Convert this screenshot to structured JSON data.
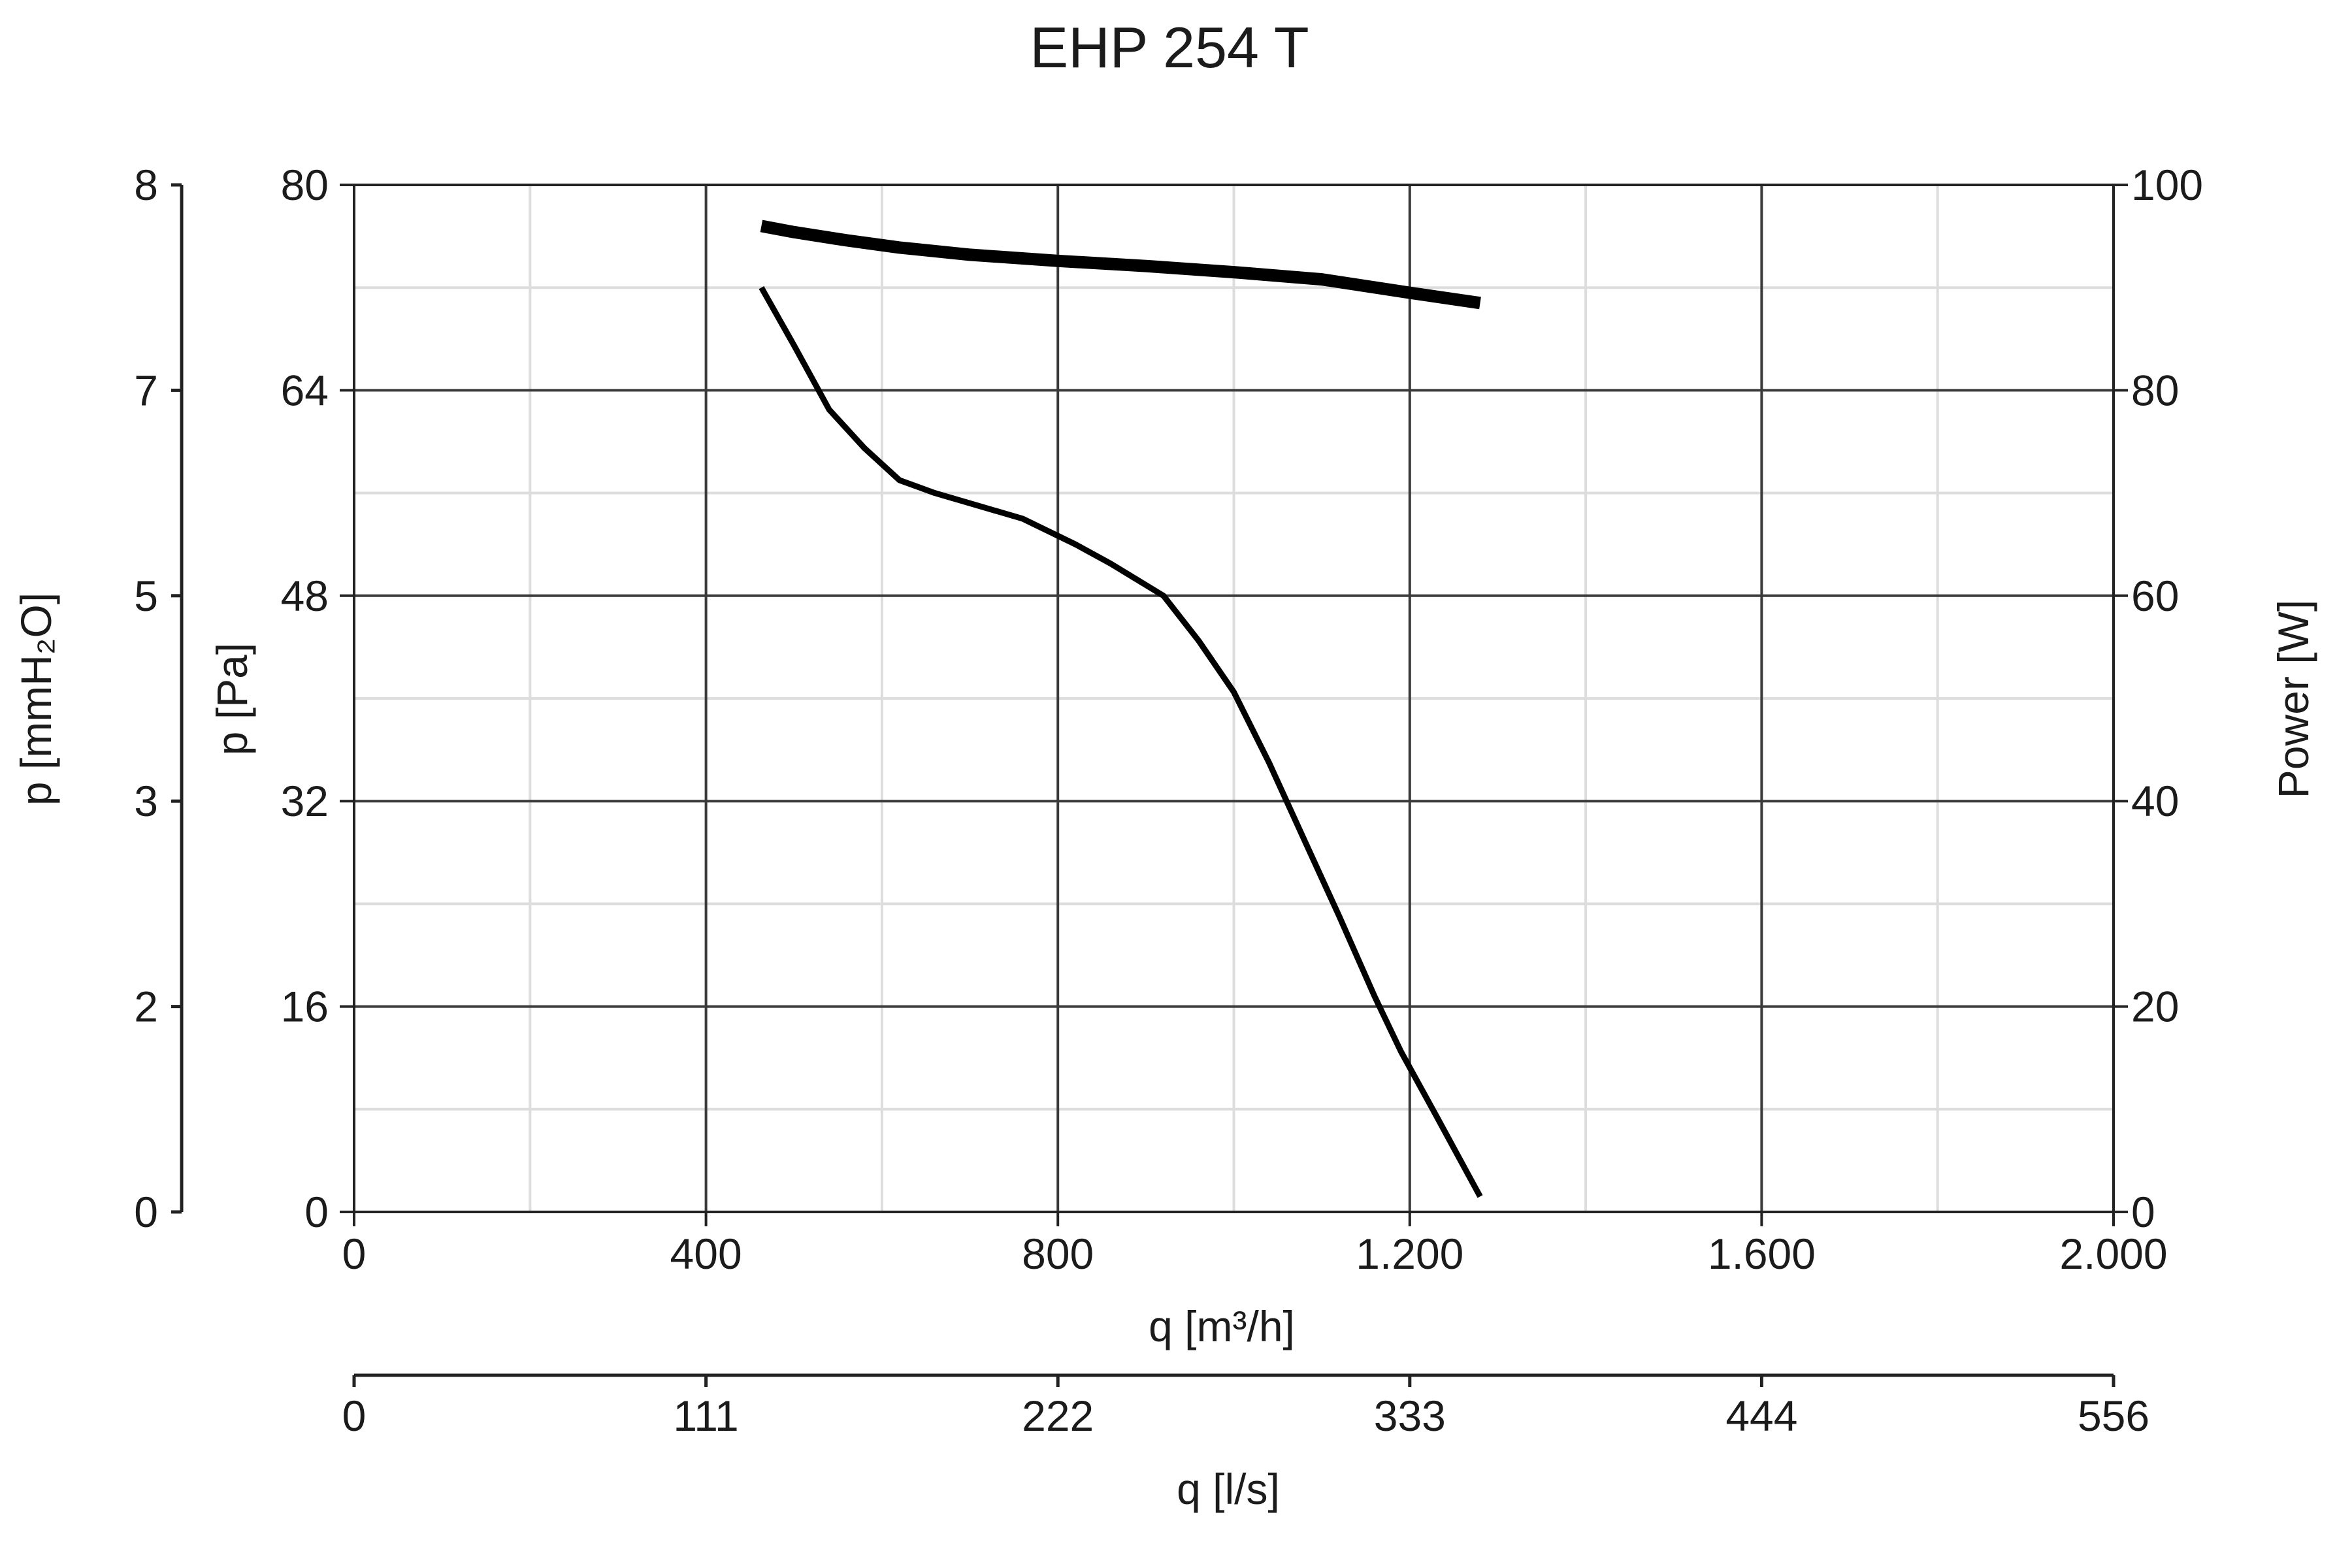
{
  "chart_data": {
    "type": "line",
    "title": "EHP 254 T",
    "xlabel": "q [m³/h]",
    "xlim": [
      0,
      2000
    ],
    "x_ticks": [
      "0",
      "400",
      "800",
      "1.200",
      "1.600",
      "2.000"
    ],
    "x2label": "q [l/s]",
    "x2_ticks": [
      "0",
      "111",
      "222",
      "333",
      "444",
      "556"
    ],
    "ylabel": "p [Pa]",
    "ylim": [
      0,
      80
    ],
    "y_ticks": [
      "0",
      "16",
      "32",
      "48",
      "64",
      "80"
    ],
    "y2label": "p [mmH₂O]",
    "y2_ticks": [
      "0",
      "2",
      "3",
      "5",
      "7",
      "8"
    ],
    "y3label": "Power [W]",
    "y3lim": [
      0,
      100
    ],
    "y3_ticks": [
      "0",
      "20",
      "40",
      "60",
      "80",
      "100"
    ],
    "grid": true,
    "series": [
      {
        "axis": "pressure",
        "x": [
          463,
          500,
          540,
          580,
          620,
          660,
          700,
          760,
          820,
          860,
          920,
          960,
          1000,
          1040,
          1080,
          1120,
          1160,
          1190,
          1230,
          1280
        ],
        "y": [
          72,
          67.5,
          62.5,
          59.5,
          57,
          56,
          55.2,
          54,
          52,
          50.5,
          48,
          44.5,
          40.5,
          35,
          29,
          23,
          16.8,
          12.5,
          7.5,
          1.2
        ]
      },
      {
        "axis": "power",
        "x": [
          463,
          500,
          560,
          620,
          700,
          800,
          900,
          1000,
          1100,
          1200,
          1280
        ],
        "y": [
          96,
          95.4,
          94.6,
          93.9,
          93.2,
          92.6,
          92.1,
          91.5,
          90.8,
          89.5,
          88.5
        ]
      }
    ]
  }
}
